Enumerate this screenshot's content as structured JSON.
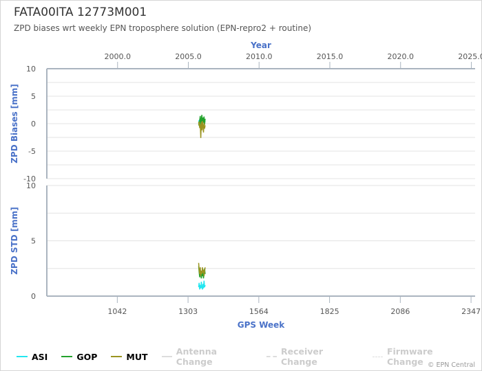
{
  "title": "FATA00ITA 12773M001",
  "subtitle": "ZPD biases wrt weekly EPN troposphere solution (EPN-repro2 + routine)",
  "credit": "© EPN Central",
  "legend": [
    {
      "name": "ASI",
      "color": "#22e6f0",
      "visible": true,
      "style": "solid"
    },
    {
      "name": "GOP",
      "color": "#22a22c",
      "visible": true,
      "style": "solid"
    },
    {
      "name": "MUT",
      "color": "#9a9420",
      "visible": true,
      "style": "solid"
    },
    {
      "name": "Antenna Change",
      "color": "#dddddd",
      "visible": false,
      "style": "solid"
    },
    {
      "name": "Receiver Change",
      "color": "#dddddd",
      "visible": false,
      "style": "dashed"
    },
    {
      "name": "Firmware Change",
      "color": "#dddddd",
      "visible": false,
      "style": "dotted"
    }
  ],
  "chart_data": [
    {
      "type": "line",
      "title": "",
      "ylabel": "ZPD Biases [mm]",
      "x2label": "Year",
      "x2_ticks": [
        "2000.0",
        "2005.0",
        "2010.0",
        "2015.0",
        "2020.0",
        "2025.0"
      ],
      "x2_tick_values": [
        2000.0,
        2005.0,
        2010.0,
        2015.0,
        2020.0,
        2025.0
      ],
      "xlim": [
        782,
        2362
      ],
      "ylim": [
        -10,
        10
      ],
      "y_ticks": [
        10,
        5,
        0,
        -5,
        -10
      ],
      "series": [
        {
          "name": "ASI",
          "x": [
            1342,
            1344,
            1346,
            1348,
            1350,
            1352,
            1354,
            1356,
            1358,
            1360,
            1362,
            1364,
            1366
          ],
          "y": [
            0.6,
            0.2,
            0.8,
            0.3,
            -0.2,
            0.5,
            1.2,
            0.1,
            0.7,
            0.4,
            -0.1,
            0.6,
            0.3
          ]
        },
        {
          "name": "GOP",
          "x": [
            1342,
            1344,
            1346,
            1348,
            1350,
            1352,
            1354,
            1356,
            1358,
            1360,
            1362,
            1364,
            1366
          ],
          "y": [
            0.3,
            -0.4,
            0.6,
            1.4,
            -0.6,
            0.9,
            1.6,
            -0.3,
            1.1,
            0.2,
            1.3,
            -0.2,
            0.9
          ]
        },
        {
          "name": "MUT",
          "x": [
            1342,
            1344,
            1346,
            1348,
            1350,
            1352,
            1354,
            1356,
            1358,
            1360,
            1362,
            1364,
            1366
          ],
          "y": [
            -0.2,
            0.4,
            -0.8,
            -0.1,
            -2.6,
            0.3,
            -1.2,
            0.5,
            -0.6,
            -1.6,
            0.2,
            -0.9,
            -0.3
          ]
        }
      ]
    },
    {
      "type": "line",
      "title": "",
      "ylabel": "ZPD STD [mm]",
      "xlabel": "GPS Week",
      "x_ticks": [
        "1042",
        "1303",
        "1564",
        "1825",
        "2086",
        "2347"
      ],
      "x_tick_values": [
        1042,
        1303,
        1564,
        1825,
        2086,
        2347
      ],
      "xlim": [
        782,
        2362
      ],
      "ylim": [
        0,
        10
      ],
      "y_ticks": [
        10,
        5,
        0
      ],
      "series": [
        {
          "name": "ASI",
          "x": [
            1342,
            1344,
            1346,
            1348,
            1350,
            1352,
            1354,
            1356,
            1358,
            1360,
            1362,
            1364,
            1366
          ],
          "y": [
            0.8,
            1.2,
            0.6,
            1.0,
            0.7,
            1.3,
            0.8,
            0.6,
            1.1,
            0.7,
            1.4,
            0.8,
            1.0
          ]
        },
        {
          "name": "GOP",
          "x": [
            1342,
            1344,
            1346,
            1348,
            1350,
            1352,
            1354,
            1356,
            1358,
            1360,
            1362,
            1364,
            1366
          ],
          "y": [
            2.7,
            2.2,
            1.7,
            2.4,
            1.9,
            1.6,
            2.3,
            1.8,
            2.2,
            1.6,
            2.1,
            2.5,
            2.0
          ]
        },
        {
          "name": "MUT",
          "x": [
            1342,
            1344,
            1346,
            1348,
            1350,
            1352,
            1354,
            1356,
            1358,
            1360,
            1362,
            1364,
            1366
          ],
          "y": [
            3.0,
            2.4,
            2.0,
            2.6,
            1.8,
            2.3,
            2.0,
            2.6,
            2.1,
            2.4,
            1.8,
            2.2,
            2.6
          ]
        }
      ]
    }
  ]
}
